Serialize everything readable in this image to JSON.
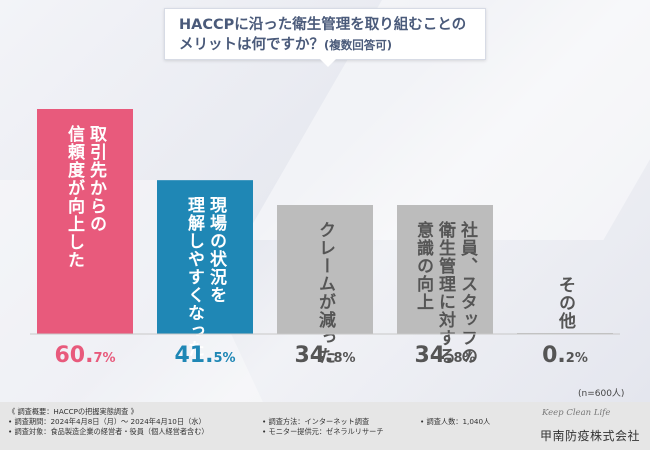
{
  "title": {
    "line1": "HACCPに沿った衛生管理を取り組むことの",
    "line2_main": "メリットは何ですか？",
    "line2_note": "(複数回答可)"
  },
  "chart_data": {
    "type": "bar",
    "title": "HACCPに沿った衛生管理を取り組むことのメリットは何ですか？(複数回答可)",
    "categories": [
      [
        "取引先からの",
        "信頼度が向上した"
      ],
      [
        "現場の状況を",
        "理解しやすくなった"
      ],
      [
        "クレームが減った"
      ],
      [
        "社員、スタッフの",
        "衛生管理に対する",
        "意識の向上"
      ],
      [
        "その他"
      ]
    ],
    "values": [
      60.7,
      41.5,
      34.8,
      34.8,
      0.2
    ],
    "value_labels": [
      {
        "int": "60.",
        "dec": "7%"
      },
      {
        "int": "41.",
        "dec": "5%"
      },
      {
        "int": "34.",
        "dec": "8%"
      },
      {
        "int": "34.",
        "dec": "8%"
      },
      {
        "int": "0.",
        "dec": "2%"
      }
    ],
    "colors": [
      "#e85a7c",
      "#1f87b5",
      "#bcbcbc",
      "#bcbcbc",
      "#bcbcbc"
    ],
    "label_colors": [
      "#e85a7c",
      "#1f87b5",
      "#555555",
      "#555555",
      "#555555"
    ],
    "ylim": [
      0,
      65
    ],
    "xlabel": "",
    "ylabel": ""
  },
  "n_note": "(n=600人)",
  "footer": {
    "line1": "《 調査概要：HACCPの把握実態調査 》",
    "line2": "• 調査期間：2024年4月8日（月）～ 2024年4月10日（水）",
    "line3": "• 調査対象：食品製造企業の経営者・役員（個人経営者含む）",
    "method": "• 調査方法：インターネット調査",
    "provider": "• モニター提供元：ゼネラルリサーチ",
    "count": "• 調査人数：1,040人",
    "logo_sub": "Keep Clean Life",
    "logo_name": "甲南防疫株式会社"
  }
}
